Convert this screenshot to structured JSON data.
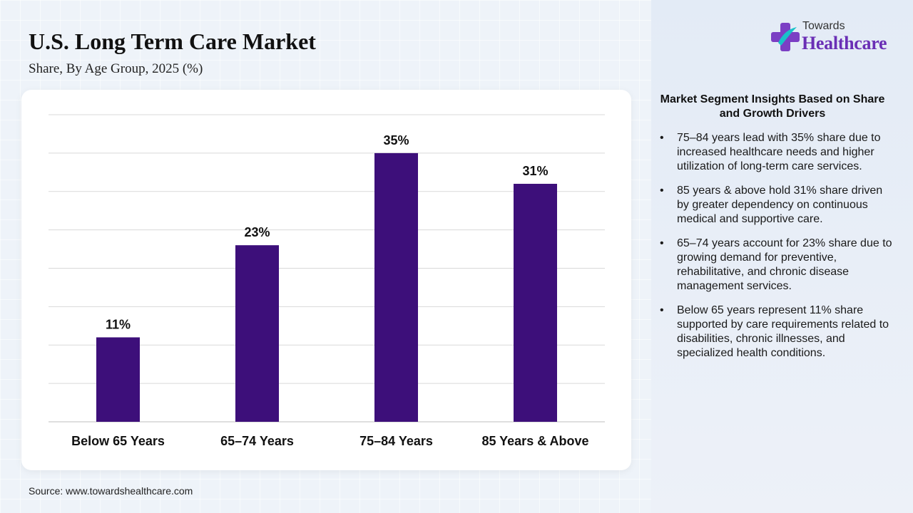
{
  "header": {
    "title": "U.S. Long Term Care Market",
    "subtitle": "Share, By Age Group, 2025 (%)"
  },
  "source": "Source: www.towardshealthcare.com",
  "logo": {
    "top_text": "Towards",
    "main_text": "Healthcare",
    "icon": "plus-cross-logo-icon"
  },
  "insights_panel": {
    "heading": "Market Segment Insights Based on Share and Growth Drivers",
    "items": [
      "75–84 years lead with 35% share due to increased healthcare needs and higher utilization of long-term care services.",
      "85 years & above hold 31% share driven by greater dependency on continuous medical and supportive care.",
      "65–74 years account for 23% share due to growing demand for preventive, rehabilitative, and chronic disease management services.",
      "Below 65 years represent 11% share supported by care requirements related to disabilities, chronic illnesses, and specialized health conditions."
    ]
  },
  "colors": {
    "bar": "#3d0f7a",
    "brand": "#6a2fb5",
    "gridline": "#d9d9d9"
  },
  "chart_data": {
    "type": "bar",
    "categories": [
      "Below 65 Years",
      "65–74 Years",
      "75–84 Years",
      "85 Years & Above"
    ],
    "values": [
      11,
      23,
      35,
      31
    ],
    "value_labels": [
      "11%",
      "23%",
      "35%",
      "31%"
    ],
    "title": "U.S. Long Term Care Market",
    "subtitle": "Share, By Age Group, 2025 (%)",
    "xlabel": "",
    "ylabel": "",
    "ylim": [
      0,
      40
    ],
    "grid": true,
    "legend": "none"
  }
}
